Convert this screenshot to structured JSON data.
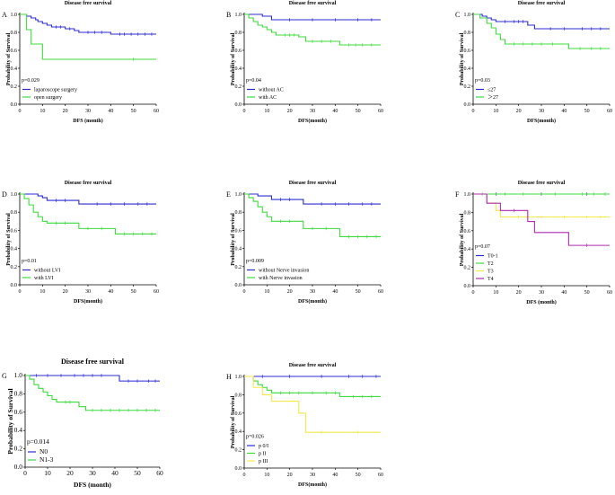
{
  "chart_data": [
    {
      "type": "line",
      "letter": "A",
      "title": "Disease free survival",
      "xlabel": "DFS (month)",
      "ylabel": "Probability of Survival",
      "xlim": [
        0,
        60
      ],
      "ylim": [
        0,
        1.0
      ],
      "xticks": [
        "0",
        "10",
        "20",
        "30",
        "40",
        "50",
        "60"
      ],
      "yticks": [
        "0.0",
        "0.2",
        "0.4",
        "0.6",
        "0.8",
        "1.0"
      ],
      "pvalue": "p=0.029",
      "series": [
        {
          "name": "laparoscope surgery",
          "color": "#2b2bd4",
          "steps": [
            [
              0,
              1.0
            ],
            [
              3,
              0.98
            ],
            [
              5,
              0.96
            ],
            [
              7,
              0.94
            ],
            [
              8,
              0.92
            ],
            [
              10,
              0.9
            ],
            [
              12,
              0.88
            ],
            [
              14,
              0.86
            ],
            [
              20,
              0.84
            ],
            [
              24,
              0.82
            ],
            [
              26,
              0.8
            ],
            [
              40,
              0.78
            ],
            [
              60,
              0.78
            ]
          ],
          "censor": [
            16,
            18,
            22,
            30,
            33,
            36,
            44,
            46,
            49,
            52,
            55,
            58
          ]
        },
        {
          "name": "open surgery",
          "color": "#3ddc3d",
          "steps": [
            [
              0,
              1.0
            ],
            [
              3,
              0.83
            ],
            [
              5,
              0.67
            ],
            [
              10,
              0.5
            ],
            [
              60,
              0.5
            ]
          ],
          "censor": [
            50
          ]
        }
      ]
    },
    {
      "type": "line",
      "letter": "B",
      "title": "Disease free survival",
      "xlabel": "DFS(month)",
      "ylabel": "Probability of Survival",
      "xlim": [
        0,
        60
      ],
      "ylim": [
        0,
        1.0
      ],
      "xticks": [
        "0",
        "10",
        "20",
        "30",
        "40",
        "50",
        "60"
      ],
      "yticks": [
        "0.0",
        "0.2",
        "0.4",
        "0.6",
        "0.8",
        "1.0"
      ],
      "pvalue": "p=0.04",
      "series": [
        {
          "name": "without AC",
          "color": "#2b2bd4",
          "steps": [
            [
              0,
              1.0
            ],
            [
              8,
              0.98
            ],
            [
              12,
              0.94
            ],
            [
              60,
              0.94
            ]
          ],
          "censor": [
            20,
            30,
            40,
            50,
            56
          ]
        },
        {
          "name": "with AC",
          "color": "#3ddc3d",
          "steps": [
            [
              0,
              1.0
            ],
            [
              2,
              0.96
            ],
            [
              4,
              0.92
            ],
            [
              6,
              0.88
            ],
            [
              8,
              0.86
            ],
            [
              10,
              0.83
            ],
            [
              12,
              0.8
            ],
            [
              14,
              0.77
            ],
            [
              24,
              0.75
            ],
            [
              27,
              0.7
            ],
            [
              42,
              0.66
            ],
            [
              60,
              0.66
            ]
          ],
          "censor": [
            18,
            20,
            22,
            30,
            34,
            38,
            46,
            49,
            52,
            56
          ]
        }
      ]
    },
    {
      "type": "line",
      "letter": "C",
      "title": "Disease free survival",
      "xlabel": "DFS(month)",
      "ylabel": "Probability of Survival",
      "xlim": [
        0,
        60
      ],
      "ylim": [
        0,
        1.0
      ],
      "xticks": [
        "0",
        "10",
        "20",
        "30",
        "40",
        "50",
        "60"
      ],
      "yticks": [
        "0.0",
        "0.2",
        "0.4",
        "0.6",
        "0.8",
        "1.0"
      ],
      "pvalue": "p=0.03",
      "series": [
        {
          "name": "≤27",
          "color": "#2b2bd4",
          "steps": [
            [
              0,
              1.0
            ],
            [
              4,
              0.98
            ],
            [
              6,
              0.96
            ],
            [
              8,
              0.94
            ],
            [
              10,
              0.92
            ],
            [
              24,
              0.88
            ],
            [
              27,
              0.84
            ],
            [
              60,
              0.84
            ]
          ],
          "censor": [
            14,
            18,
            20,
            22,
            34,
            40,
            48,
            52,
            56
          ]
        },
        {
          "name": "＞27",
          "color": "#3ddc3d",
          "steps": [
            [
              0,
              1.0
            ],
            [
              3,
              0.96
            ],
            [
              6,
              0.9
            ],
            [
              8,
              0.85
            ],
            [
              10,
              0.78
            ],
            [
              12,
              0.72
            ],
            [
              14,
              0.67
            ],
            [
              42,
              0.62
            ],
            [
              60,
              0.62
            ]
          ],
          "censor": [
            18,
            22,
            26,
            30,
            35,
            47,
            52,
            56
          ]
        }
      ]
    },
    {
      "type": "line",
      "letter": "D",
      "title": "Disease free survival",
      "xlabel": "DFS(month)",
      "ylabel": "Probability of Survival",
      "xlim": [
        0,
        60
      ],
      "ylim": [
        0,
        1.0
      ],
      "xticks": [
        "0",
        "10",
        "20",
        "30",
        "40",
        "50",
        "60"
      ],
      "yticks": [
        "0.0",
        "0.2",
        "0.4",
        "0.6",
        "0.8",
        "1.0"
      ],
      "pvalue": "p=0.01",
      "series": [
        {
          "name": "without LVI",
          "color": "#2b2bd4",
          "steps": [
            [
              0,
              1.0
            ],
            [
              8,
              0.98
            ],
            [
              10,
              0.96
            ],
            [
              12,
              0.93
            ],
            [
              26,
              0.89
            ],
            [
              60,
              0.89
            ]
          ],
          "censor": [
            16,
            20,
            34,
            40,
            46,
            52,
            56
          ]
        },
        {
          "name": "with LVI",
          "color": "#3ddc3d",
          "steps": [
            [
              0,
              1.0
            ],
            [
              2,
              0.95
            ],
            [
              4,
              0.88
            ],
            [
              6,
              0.8
            ],
            [
              8,
              0.75
            ],
            [
              10,
              0.7
            ],
            [
              12,
              0.68
            ],
            [
              26,
              0.62
            ],
            [
              42,
              0.56
            ],
            [
              60,
              0.56
            ]
          ],
          "censor": [
            16,
            20,
            30,
            36,
            46,
            50,
            54,
            58
          ]
        }
      ]
    },
    {
      "type": "line",
      "letter": "E",
      "title": "Disease free survival",
      "xlabel": "DFS(month)",
      "ylabel": "Probability of Survival",
      "xlim": [
        0,
        60
      ],
      "ylim": [
        0,
        1.0
      ],
      "xticks": [
        "0",
        "10",
        "20",
        "30",
        "40",
        "50",
        "60"
      ],
      "yticks": [
        "0.0",
        "0.2",
        "0.4",
        "0.6",
        "0.8",
        "1.0"
      ],
      "pvalue": "p=0.009",
      "series": [
        {
          "name": "without Nerve invasion",
          "color": "#2b2bd4",
          "steps": [
            [
              0,
              1.0
            ],
            [
              6,
              0.98
            ],
            [
              12,
              0.94
            ],
            [
              26,
              0.89
            ],
            [
              60,
              0.89
            ]
          ],
          "censor": [
            16,
            20,
            34,
            40,
            46,
            52,
            56
          ]
        },
        {
          "name": "with Nerve invasion",
          "color": "#3ddc3d",
          "steps": [
            [
              0,
              1.0
            ],
            [
              2,
              0.96
            ],
            [
              4,
              0.92
            ],
            [
              6,
              0.86
            ],
            [
              8,
              0.8
            ],
            [
              10,
              0.75
            ],
            [
              12,
              0.7
            ],
            [
              26,
              0.62
            ],
            [
              42,
              0.53
            ],
            [
              60,
              0.53
            ]
          ],
          "censor": [
            16,
            20,
            30,
            36,
            46,
            50,
            54,
            58
          ]
        }
      ]
    },
    {
      "type": "line",
      "letter": "F",
      "title": "Disease free survival",
      "xlabel": "DFS (month)",
      "ylabel": "Probability of Survival",
      "xlim": [
        0,
        60
      ],
      "ylim": [
        0,
        1.0
      ],
      "xticks": [
        "0",
        "10",
        "20",
        "30",
        "40",
        "50",
        "60"
      ],
      "yticks": [
        "0.0",
        "0.2",
        "0.4",
        "0.6",
        "0.8",
        "1.0"
      ],
      "pvalue": "p=0.07",
      "series": [
        {
          "name": "T0-1",
          "color": "#2b2bd4",
          "steps": [
            [
              0,
              1.0
            ],
            [
              60,
              1.0
            ]
          ],
          "censor": [
            10,
            30,
            50
          ]
        },
        {
          "name": "T2",
          "color": "#3ddc3d",
          "steps": [
            [
              0,
              1.0
            ],
            [
              60,
              1.0
            ]
          ],
          "censor": [
            4,
            14,
            22,
            36,
            48,
            53,
            58
          ]
        },
        {
          "name": "T3",
          "color": "#f2e94a",
          "steps": [
            [
              0,
              1.0
            ],
            [
              6,
              0.9
            ],
            [
              10,
              0.82
            ],
            [
              12,
              0.75
            ],
            [
              60,
              0.75
            ]
          ],
          "censor": [
            20,
            30,
            40,
            50,
            56
          ]
        },
        {
          "name": "T4",
          "color": "#b02cb0",
          "steps": [
            [
              0,
              1.0
            ],
            [
              6,
              0.9
            ],
            [
              12,
              0.82
            ],
            [
              24,
              0.7
            ],
            [
              27,
              0.58
            ],
            [
              42,
              0.44
            ],
            [
              60,
              0.44
            ]
          ],
          "censor": [
            18,
            50
          ]
        }
      ]
    },
    {
      "type": "line",
      "letter": "G",
      "title": "Disease free survival",
      "xlabel": "DFS (month)",
      "ylabel": "Probability of Survival",
      "xlim": [
        0,
        60
      ],
      "ylim": [
        0,
        1.0
      ],
      "xticks": [
        "0",
        "10",
        "20",
        "30",
        "40",
        "50",
        "60"
      ],
      "yticks": [
        "0.0",
        "0.2",
        "0.4",
        "0.6",
        "0.8",
        "1.0"
      ],
      "pvalue": "p=0.014",
      "series": [
        {
          "name": "N0",
          "color": "#2b2bd4",
          "steps": [
            [
              0,
              1.0
            ],
            [
              42,
              0.94
            ],
            [
              60,
              0.94
            ]
          ],
          "censor": [
            5,
            10,
            16,
            22,
            26,
            30,
            34,
            46,
            50,
            55,
            58
          ]
        },
        {
          "name": "N1-3",
          "color": "#3ddc3d",
          "steps": [
            [
              0,
              1.0
            ],
            [
              2,
              0.96
            ],
            [
              4,
              0.9
            ],
            [
              6,
              0.86
            ],
            [
              8,
              0.82
            ],
            [
              10,
              0.78
            ],
            [
              12,
              0.74
            ],
            [
              14,
              0.71
            ],
            [
              24,
              0.66
            ],
            [
              27,
              0.62
            ],
            [
              60,
              0.62
            ]
          ],
          "censor": [
            18,
            20,
            30,
            34,
            38,
            42,
            46,
            50,
            54,
            58
          ]
        }
      ]
    },
    {
      "type": "line",
      "letter": "H",
      "title": "Disease free survival",
      "xlabel": "DFS(month)",
      "ylabel": "Probability of Survival",
      "xlim": [
        0,
        60
      ],
      "ylim": [
        0,
        1.0
      ],
      "xticks": [
        "0",
        "10",
        "20",
        "30",
        "40",
        "50",
        "60"
      ],
      "yticks": [
        "0.0",
        "0.2",
        "0.4",
        "0.6",
        "0.8",
        "1.0"
      ],
      "pvalue": "p=0.026",
      "series": [
        {
          "name": "p 0/I",
          "color": "#2b2bd4",
          "steps": [
            [
              0,
              1.0
            ],
            [
              60,
              1.0
            ]
          ],
          "censor": [
            8,
            20,
            34,
            46,
            52,
            58
          ]
        },
        {
          "name": "p II",
          "color": "#3ddc3d",
          "steps": [
            [
              0,
              1.0
            ],
            [
              4,
              0.95
            ],
            [
              6,
              0.91
            ],
            [
              8,
              0.88
            ],
            [
              10,
              0.85
            ],
            [
              12,
              0.82
            ],
            [
              42,
              0.78
            ],
            [
              60,
              0.78
            ]
          ],
          "censor": [
            16,
            20,
            24,
            30,
            36,
            40,
            48,
            52,
            56
          ]
        },
        {
          "name": "p III",
          "color": "#f2e94a",
          "steps": [
            [
              0,
              1.0
            ],
            [
              4,
              0.88
            ],
            [
              8,
              0.8
            ],
            [
              12,
              0.73
            ],
            [
              24,
              0.6
            ],
            [
              27,
              0.39
            ],
            [
              60,
              0.39
            ]
          ],
          "censor": [
            34,
            50
          ]
        }
      ]
    }
  ]
}
